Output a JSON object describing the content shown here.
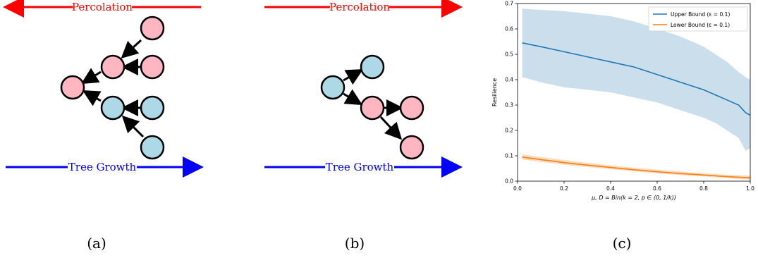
{
  "colors": {
    "percolation": "#ff0000",
    "tree_growth": "#0000ff",
    "node_red": "#ffb6c1",
    "node_blue": "#add8e6",
    "upper": "#1f77b4",
    "upper_fill": "#c5daea",
    "lower": "#ff7f0e",
    "lower_fill": "#fdd6b5"
  },
  "panel_a": {
    "caption": "(a)",
    "top_arrow_label": "Percolation",
    "bottom_arrow_label": "Tree Growth"
  },
  "panel_b": {
    "caption": "(b)",
    "top_arrow_label": "Percolation",
    "bottom_arrow_label": "Tree Growth"
  },
  "panel_c": {
    "caption": "(c)"
  },
  "chart_data": {
    "type": "line",
    "xlabel": "μ, D = Bin(k = 2, p ∈ (0, 1/k))",
    "ylabel": "Resilience",
    "xlim": [
      0.0,
      1.0
    ],
    "ylim": [
      0.0,
      0.7
    ],
    "xticks": [
      "0.0",
      "0.2",
      "0.4",
      "0.6",
      "0.8",
      "1.0"
    ],
    "yticks": [
      "0.0",
      "0.1",
      "0.2",
      "0.3",
      "0.4",
      "0.5",
      "0.6",
      "0.7"
    ],
    "legend_position": "top-right",
    "grid": false,
    "series": [
      {
        "name": "Upper Bound (ε = 0.1)",
        "x": [
          0.02,
          0.1,
          0.2,
          0.3,
          0.4,
          0.5,
          0.6,
          0.7,
          0.8,
          0.85,
          0.9,
          0.95,
          0.98,
          1.0
        ],
        "y": [
          0.545,
          0.53,
          0.51,
          0.49,
          0.47,
          0.45,
          0.42,
          0.39,
          0.36,
          0.34,
          0.32,
          0.3,
          0.27,
          0.26
        ],
        "lower": [
          0.41,
          0.39,
          0.37,
          0.36,
          0.35,
          0.33,
          0.31,
          0.28,
          0.25,
          0.23,
          0.2,
          0.17,
          0.12,
          0.13
        ],
        "upper": [
          0.68,
          0.675,
          0.67,
          0.66,
          0.65,
          0.63,
          0.6,
          0.57,
          0.53,
          0.5,
          0.47,
          0.43,
          0.41,
          0.4
        ]
      },
      {
        "name": "Lower Bound (ε = 0.1)",
        "x": [
          0.02,
          0.1,
          0.2,
          0.3,
          0.4,
          0.5,
          0.6,
          0.7,
          0.8,
          0.9,
          1.0
        ],
        "y": [
          0.095,
          0.085,
          0.073,
          0.063,
          0.054,
          0.045,
          0.037,
          0.03,
          0.024,
          0.018,
          0.013
        ],
        "lower": [
          0.085,
          0.076,
          0.065,
          0.056,
          0.047,
          0.039,
          0.031,
          0.024,
          0.018,
          0.012,
          0.006
        ],
        "upper": [
          0.106,
          0.095,
          0.083,
          0.072,
          0.062,
          0.053,
          0.045,
          0.038,
          0.031,
          0.025,
          0.022
        ]
      }
    ]
  }
}
